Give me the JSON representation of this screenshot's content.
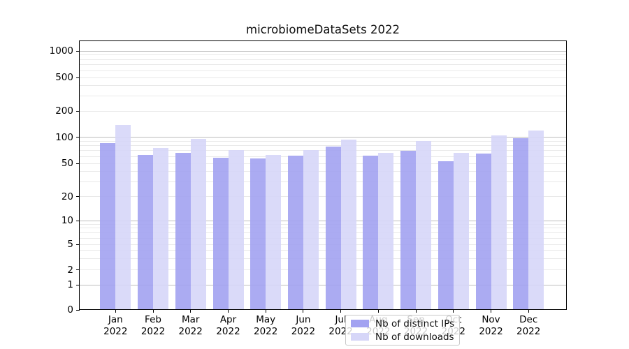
{
  "title": "microbiomeDataSets 2022",
  "chart_data": {
    "type": "bar",
    "title": "microbiomeDataSets 2022",
    "categories": [
      "Jan 2022",
      "Feb 2022",
      "Mar 2022",
      "Apr 2022",
      "May 2022",
      "Jun 2022",
      "Jul 2022",
      "Aug 2022",
      "Sep 2022",
      "Oct 2022",
      "Nov 2022",
      "Dec 2022"
    ],
    "series": [
      {
        "name": "Nb of distinct IPs",
        "color": "#a2a2f1",
        "values": [
          85,
          62,
          65,
          57,
          56,
          61,
          77,
          61,
          69,
          52,
          64,
          96
        ]
      },
      {
        "name": "Nb of downloads",
        "color": "#d6d6f8",
        "values": [
          137,
          74,
          94,
          70,
          62,
          71,
          93,
          66,
          90,
          65,
          104,
          118
        ]
      }
    ],
    "xlabel": "",
    "ylabel": "",
    "y_ticks": [
      0,
      1,
      2,
      5,
      10,
      20,
      50,
      100,
      200,
      500,
      1000
    ],
    "yscale": "pseudo-log (1-2-5 tick sequence with 0 baseline)",
    "ylim": [
      0,
      1500
    ],
    "grid": "horizontal only; major lines at powers of 10, minor lines at 2-9 multiples",
    "legend_position": "bottom center, inside plot area"
  },
  "colors": {
    "bar_distinct_ips": "#a2a2f1",
    "bar_downloads": "#d6d6f8",
    "grid_major": "#bdbdbd",
    "grid_minor": "#e9e9e9",
    "frame": "#000000",
    "legend_border": "#c9c9c9"
  }
}
